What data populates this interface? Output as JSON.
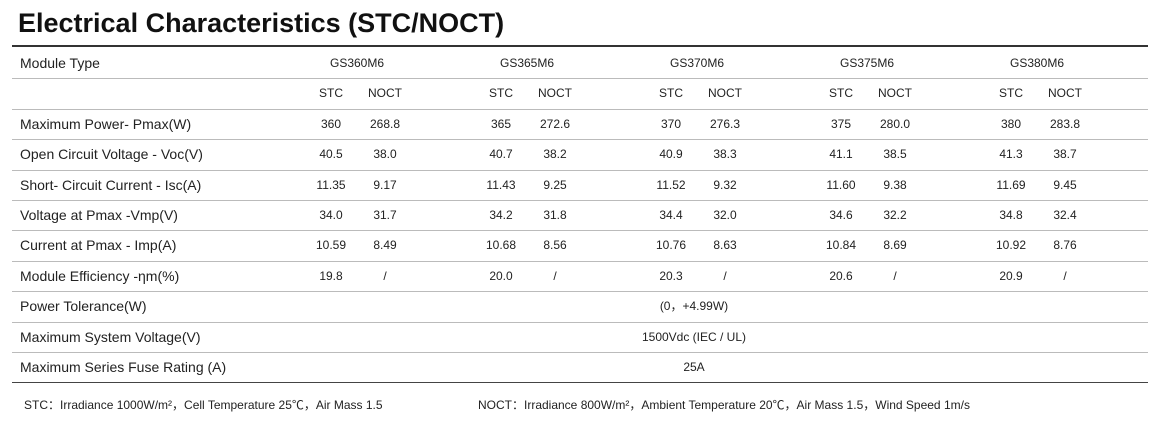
{
  "title": "Electrical Characteristics (STC/NOCT)",
  "table": {
    "header_label": "Module Type",
    "models": [
      "GS360M6",
      "GS365M6",
      "GS370M6",
      "GS375M6",
      "GS380M6"
    ],
    "subheaders": [
      [
        "STC",
        "NOCT"
      ],
      [
        "STC",
        "NOCT"
      ],
      [
        "STC",
        "NOCT"
      ],
      [
        "STC",
        "NOCT"
      ],
      [
        "STC",
        "NOCT"
      ]
    ],
    "rows": [
      {
        "label": "Maximum Power- Pmax(W)",
        "values": [
          "360",
          "268.8",
          "365",
          "272.6",
          "370",
          "276.3",
          "375",
          "280.0",
          "380",
          "283.8"
        ]
      },
      {
        "label": "Open Circuit Voltage - Voc(V)",
        "values": [
          "40.5",
          "38.0",
          "40.7",
          "38.2",
          "40.9",
          "38.3",
          "41.1",
          "38.5",
          "41.3",
          "38.7"
        ]
      },
      {
        "label": "Short- Circuit Current - Isc(A)",
        "values": [
          "11.35",
          "9.17",
          "11.43",
          "9.25",
          "11.52",
          "9.32",
          "11.60",
          "9.38",
          "11.69",
          "9.45"
        ]
      },
      {
        "label": "Voltage at Pmax -Vmp(V)",
        "values": [
          "34.0",
          "31.7",
          "34.2",
          "31.8",
          "34.4",
          "32.0",
          "34.6",
          "32.2",
          "34.8",
          "32.4"
        ]
      },
      {
        "label": "Current at Pmax  - Imp(A)",
        "values": [
          "10.59",
          "8.49",
          "10.68",
          "8.56",
          "10.76",
          "8.63",
          "10.84",
          "8.69",
          "10.92",
          "8.76"
        ]
      },
      {
        "label": "Module Efficiency -ηm(%)",
        "values": [
          "19.8",
          "/",
          "20.0",
          "/",
          "20.3",
          "/",
          "20.6",
          "/",
          "20.9",
          "/"
        ]
      }
    ],
    "merged_rows": [
      {
        "label": "Power Tolerance(W)",
        "value": "(0，+4.99W)"
      },
      {
        "label": "Maximum System Voltage(V)",
        "value": "1500Vdc (IEC / UL)"
      },
      {
        "label": "Maximum Series Fuse Rating (A)",
        "value": "25A"
      }
    ]
  },
  "footnotes": [
    "STC：Irradiance 1000W/m²，Cell Temperature 25℃，Air Mass 1.5",
    "NOCT：Irradiance 800W/m²，Ambient Temperature 20℃，Air Mass 1.5，Wind Speed 1m/s"
  ]
}
